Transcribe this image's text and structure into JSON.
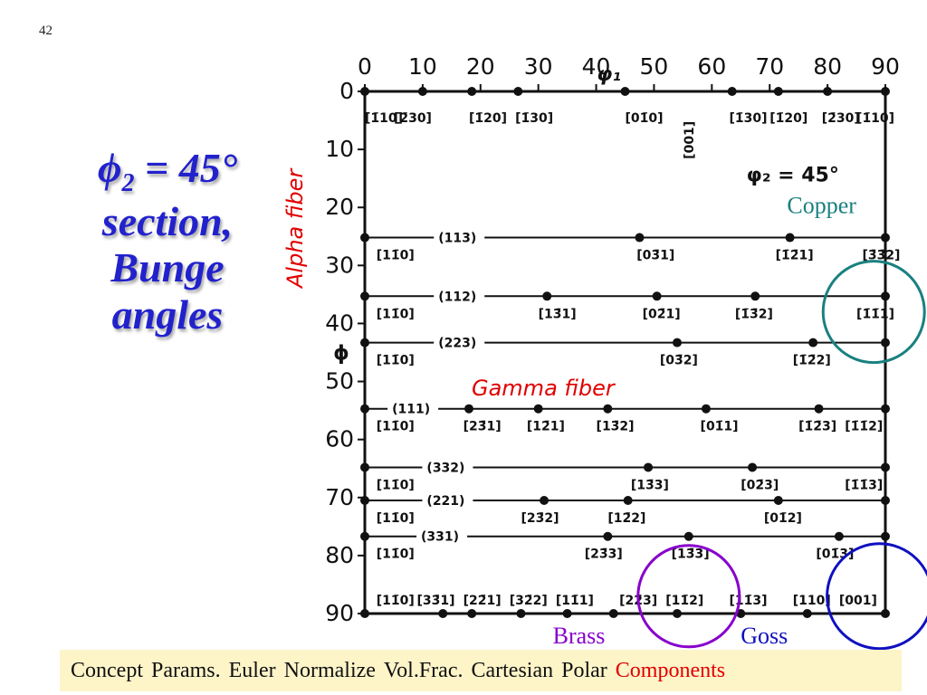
{
  "slide_number": "42",
  "title": {
    "phi": "ϕ",
    "sub": "2",
    "rest": " = 45°",
    "line2": "section,",
    "line3": "Bunge",
    "line4": "angles"
  },
  "alpha_fiber_label": "Alpha fiber",
  "nav": {
    "items": [
      "Concept",
      "Params.",
      "Euler",
      "Normalize",
      "Vol.Frac.",
      "Cartesian",
      "Polar",
      "Components"
    ],
    "active_index": 7
  },
  "colors": {
    "title": "#2222cc",
    "red": "#e00000",
    "copper": "#1a8080",
    "brass": "#8800cc",
    "goss": "#1010c0",
    "bar": "#fdf4c8"
  },
  "chart_data": {
    "type": "scatter",
    "x": {
      "label": "φ₁",
      "range": [
        0,
        90
      ],
      "ticks": [
        0,
        10,
        20,
        30,
        40,
        50,
        60,
        70,
        80,
        90
      ]
    },
    "y": {
      "label": "ϕ",
      "range": [
        0,
        90
      ],
      "ticks": [
        0,
        10,
        20,
        30,
        40,
        50,
        60,
        70,
        80,
        90
      ],
      "inverted": true
    },
    "section_label": "φ₂ = 45°",
    "rows": [
      {
        "phi": 0,
        "points": [
          0,
          10,
          18.5,
          26.5,
          45,
          63.5,
          71.5,
          80,
          90
        ],
        "labels": [
          {
            "x": 0,
            "t": "[1̄10]"
          },
          {
            "x": 5,
            "t": "[2̄30]"
          },
          {
            "x": 18,
            "t": "[1̄20]"
          },
          {
            "x": 26,
            "t": "[1̄30]"
          },
          {
            "x": 45,
            "t": "[01̄0]"
          },
          {
            "x": 63,
            "t": "[1̄30]"
          },
          {
            "x": 70,
            "t": "[1̄20]"
          },
          {
            "x": 79,
            "t": "[2̄30]"
          },
          {
            "x": 85,
            "t": "[1̄10]"
          }
        ]
      },
      {
        "phi": 25.2,
        "family": "(113)",
        "family_x": 16,
        "points": [
          0,
          47.5,
          73.5,
          90
        ],
        "labels": [
          {
            "x": 2,
            "t": "[11̄0]"
          },
          {
            "x": 47,
            "t": "[03̄1]"
          },
          {
            "x": 71,
            "t": "[1̄2̄1]"
          },
          {
            "x": 86,
            "t": "[3̄3̄2]"
          }
        ]
      },
      {
        "phi": 35.3,
        "family": "(112)",
        "family_x": 16,
        "points": [
          0,
          31.5,
          50.5,
          67.5,
          90
        ],
        "labels": [
          {
            "x": 2,
            "t": "[11̄0]"
          },
          {
            "x": 30,
            "t": "[13̄1]"
          },
          {
            "x": 48,
            "t": "[02̄1]"
          },
          {
            "x": 64,
            "t": "[1̄3̄2]"
          },
          {
            "x": 85,
            "t": "[1̄1̄1]"
          }
        ]
      },
      {
        "phi": 43.3,
        "family": "(223)",
        "family_x": 16,
        "points": [
          0,
          54,
          77.5,
          90
        ],
        "labels": [
          {
            "x": 2,
            "t": "[11̄0]"
          },
          {
            "x": 51,
            "t": "[03̄2]"
          },
          {
            "x": 74,
            "t": "[1̄2̄2]"
          }
        ]
      },
      {
        "phi": 54.7,
        "family": "(111)",
        "family_x": 8,
        "points": [
          0,
          18,
          30,
          42,
          59,
          78.5,
          90
        ],
        "labels": [
          {
            "x": 2,
            "t": "[11̄0]"
          },
          {
            "x": 17,
            "t": "[23̄1]"
          },
          {
            "x": 28,
            "t": "[12̄1]"
          },
          {
            "x": 40,
            "t": "[13̄2]"
          },
          {
            "x": 58,
            "t": "[01̄1]"
          },
          {
            "x": 75,
            "t": "[1̄2̄3]"
          },
          {
            "x": 83,
            "t": "[1̄1̄2]"
          }
        ]
      },
      {
        "phi": 64.8,
        "family": "(332)",
        "family_x": 14,
        "points": [
          0,
          49,
          67,
          90
        ],
        "labels": [
          {
            "x": 2,
            "t": "[11̄0]"
          },
          {
            "x": 46,
            "t": "[13̄3]"
          },
          {
            "x": 65,
            "t": "[02̄3]"
          },
          {
            "x": 83,
            "t": "[1̄1̄3]"
          }
        ]
      },
      {
        "phi": 70.5,
        "family": "(221)",
        "family_x": 14,
        "points": [
          0,
          31,
          45.5,
          71.5,
          90
        ],
        "labels": [
          {
            "x": 2,
            "t": "[11̄0]"
          },
          {
            "x": 27,
            "t": "[23̄2]"
          },
          {
            "x": 42,
            "t": "[12̄2]"
          },
          {
            "x": 69,
            "t": "[01̄2]"
          }
        ]
      },
      {
        "phi": 76.7,
        "family": "(331)",
        "family_x": 13,
        "points": [
          0,
          42,
          56,
          82,
          90
        ],
        "labels": [
          {
            "x": 2,
            "t": "[11̄0]"
          },
          {
            "x": 38,
            "t": "[23̄3]"
          },
          {
            "x": 53,
            "t": "[13̄3]"
          },
          {
            "x": 78,
            "t": "[01̄3]"
          }
        ]
      },
      {
        "phi": 90,
        "points": [
          0,
          13.5,
          18.5,
          27,
          35,
          43,
          54,
          65,
          76.5,
          90
        ],
        "labels": [
          {
            "x": 2,
            "t": "[11̄0]"
          },
          {
            "x": 9,
            "t": "[33̄1]"
          },
          {
            "x": 17,
            "t": "[22̄1]"
          },
          {
            "x": 25,
            "t": "[32̄2]"
          },
          {
            "x": 33,
            "t": "[11̄1]"
          },
          {
            "x": 44,
            "t": "[22̄3]"
          },
          {
            "x": 52,
            "t": "[11̄2]"
          },
          {
            "x": 63,
            "t": "[11̄3]"
          },
          {
            "x": 74,
            "t": "[110]"
          },
          {
            "x": 82,
            "t": "[001]"
          }
        ]
      }
    ],
    "vertical_label": {
      "x": 56,
      "phi": 2,
      "t": "[001]"
    },
    "annotations": [
      {
        "name": "Copper",
        "color": "#1a8080",
        "label": "Copper",
        "circle_x": 88,
        "circle_phi": 38
      },
      {
        "name": "Brass",
        "color": "#8800cc",
        "label": "Brass",
        "circle_x": 56,
        "circle_phi": 87
      },
      {
        "name": "Goss",
        "color": "#1010c0",
        "label": "Goss",
        "circle_x": 89,
        "circle_phi": 87
      }
    ],
    "gamma_fiber_label": "Gamma fiber"
  }
}
